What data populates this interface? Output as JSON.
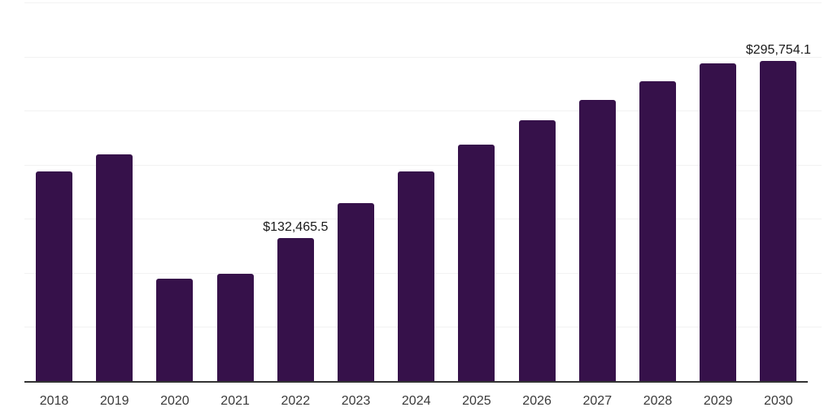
{
  "chart": {
    "background_color": "#ffffff",
    "bar_color": "#36114a",
    "grid_color": "#f2f2f2",
    "axis_color": "#333333",
    "tick_label_color": "#3a3a3a",
    "value_label_color": "#1a1a1a"
  },
  "chart_data": {
    "type": "bar",
    "title": "",
    "xlabel": "",
    "ylabel": "",
    "categories": [
      "2018",
      "2019",
      "2020",
      "2021",
      "2022",
      "2023",
      "2024",
      "2025",
      "2026",
      "2027",
      "2028",
      "2029",
      "2030"
    ],
    "values": [
      193500,
      209300,
      94500,
      99000,
      132465.5,
      164300,
      194000,
      218400,
      240900,
      259600,
      276900,
      294000,
      295754.1
    ],
    "point_labels": [
      "",
      "",
      "",
      "",
      "$132,465.5",
      "",
      "",
      "",
      "",
      "",
      "",
      "",
      "$295,754.1"
    ],
    "ylim": [
      0,
      350000
    ],
    "grid": true,
    "gridline_values": [
      0,
      50000,
      100000,
      150000,
      200000,
      250000,
      300000,
      350000
    ],
    "legend_position": "none"
  }
}
